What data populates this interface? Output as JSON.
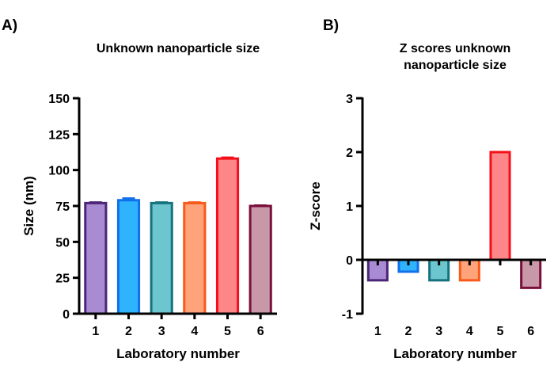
{
  "chart_data": [
    {
      "panel": "A)",
      "type": "bar",
      "title": "Unknown nanoparticle size",
      "xlabel": "Laboratory number",
      "ylabel": "Size (nm)",
      "categories": [
        "1",
        "2",
        "3",
        "4",
        "5",
        "6"
      ],
      "values": [
        77,
        79,
        77,
        77,
        108,
        75
      ],
      "errors": [
        0.4,
        1.2,
        0.4,
        0.4,
        0.6,
        0.3
      ],
      "ylim": [
        0,
        150
      ],
      "yticks": [
        0,
        25,
        50,
        75,
        100,
        125,
        150
      ],
      "ytick_labels": [
        "0",
        "25",
        "50",
        "75",
        "100",
        "125",
        "150"
      ],
      "grid": false,
      "colors": {
        "fill": [
          "#a98bd3",
          "#2fb3fd",
          "#6cc6cf",
          "#fea37a",
          "#fd8788",
          "#c897a8"
        ],
        "edge": [
          "#4b2676",
          "#1270e9",
          "#16727e",
          "#f95a19",
          "#f4101a",
          "#7a0e3b"
        ]
      }
    },
    {
      "panel": "B)",
      "type": "bar",
      "title": "Z scores unknown nanoparticle size",
      "title_lines": [
        "Z scores unknown",
        "nanoparticle size"
      ],
      "xlabel": "Laboratory number",
      "ylabel": "Z-score",
      "categories": [
        "1",
        "2",
        "3",
        "4",
        "5",
        "6"
      ],
      "values": [
        -0.38,
        -0.22,
        -0.38,
        -0.38,
        2.0,
        -0.52
      ],
      "ylim": [
        -1,
        3
      ],
      "yticks": [
        -1,
        0,
        1,
        2,
        3
      ],
      "ytick_labels": [
        "-1",
        "0",
        "1",
        "2",
        "3"
      ],
      "grid": false,
      "colors": {
        "fill": [
          "#a98bd3",
          "#2fb3fd",
          "#6cc6cf",
          "#fea37a",
          "#fd8788",
          "#c897a8"
        ],
        "edge": [
          "#4b2676",
          "#1270e9",
          "#16727e",
          "#f95a19",
          "#f4101a",
          "#7a0e3b"
        ]
      }
    }
  ]
}
